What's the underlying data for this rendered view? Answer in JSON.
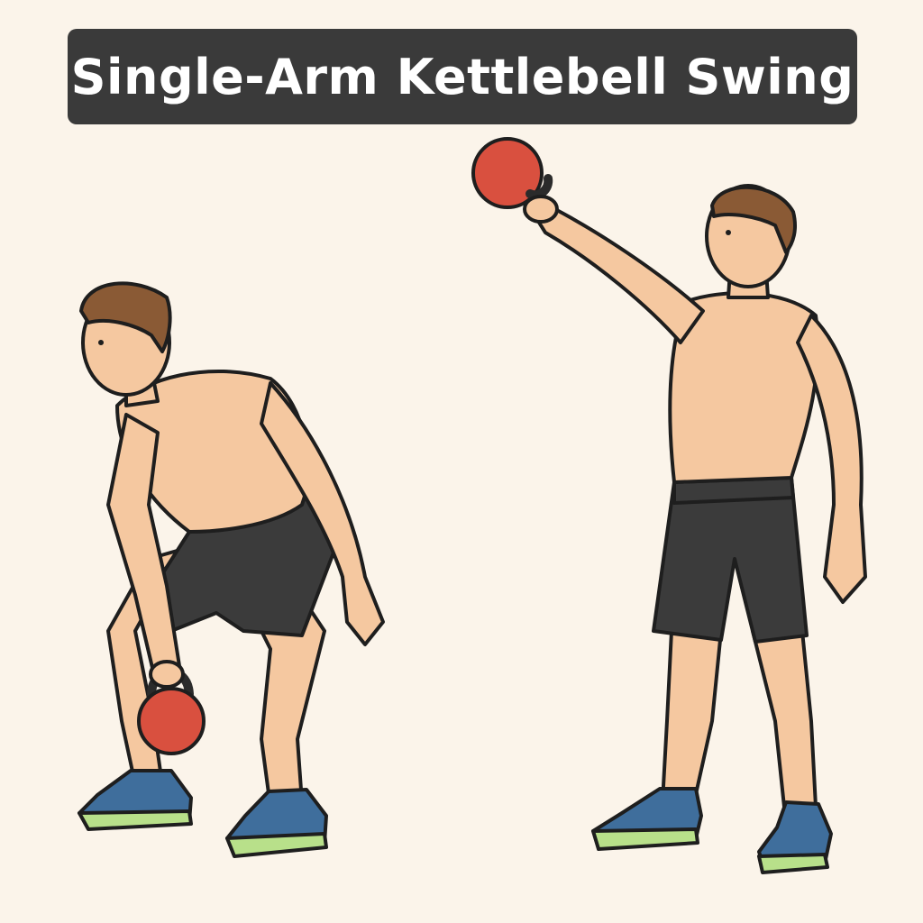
{
  "title": "Single-Arm Kettlebell Swing",
  "colors": {
    "background": "#fbf4ea",
    "banner": "#3a3a3a",
    "banner_text": "#ffffff",
    "skin": "#f5c8a0",
    "hair": "#8a5a35",
    "shorts": "#3b3b3b",
    "kettlebell": "#d9503f",
    "shoe": "#3f6e9c",
    "sole": "#b8e08a",
    "outline": "#1e1e1e"
  },
  "illustrations": [
    {
      "name": "starting-position-figure",
      "pose": "hinged, kettlebell held low between legs"
    },
    {
      "name": "top-position-figure",
      "pose": "standing upright, kettlebell extended overhead"
    }
  ]
}
